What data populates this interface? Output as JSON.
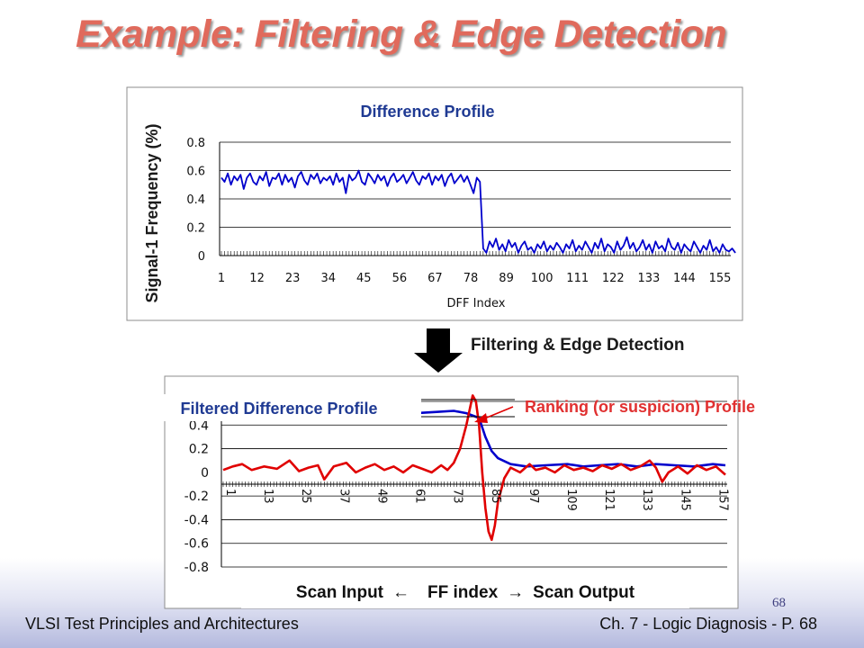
{
  "slide": {
    "title": "Example: Filtering & Edge Detection",
    "arrow_label": "Filtering & Edge Detection",
    "page_number": "68",
    "footer_left": "VLSI Test Principles and Architectures",
    "footer_right": "Ch. 7 - Logic Diagnosis  - P. 68",
    "bottom_caption": {
      "left": "Scan Input",
      "middle": "FF index",
      "right": "Scan Output"
    },
    "colors": {
      "title": "#e06a5c",
      "blue_series": "#0000cc",
      "red_series": "#e00000"
    }
  },
  "chart_data": [
    {
      "type": "line",
      "title": "Difference Profile",
      "xlabel": "DFF Index",
      "ylabel": "Signal-1 Frequency (%)",
      "ylim": [
        0,
        0.8
      ],
      "yticks": [
        0,
        0.2,
        0.4,
        0.6,
        0.8
      ],
      "xtick_labels": [
        "1",
        "12",
        "23",
        "34",
        "45",
        "56",
        "67",
        "78",
        "89",
        "100",
        "111",
        "122",
        "133",
        "144",
        "155"
      ],
      "x_count": 160,
      "grid": "horizontal",
      "series": [
        {
          "color": "#0000cc",
          "values": [
            0.55,
            0.52,
            0.58,
            0.5,
            0.56,
            0.53,
            0.57,
            0.47,
            0.55,
            0.58,
            0.52,
            0.5,
            0.56,
            0.53,
            0.59,
            0.49,
            0.55,
            0.54,
            0.58,
            0.5,
            0.57,
            0.52,
            0.55,
            0.48,
            0.56,
            0.59,
            0.53,
            0.5,
            0.57,
            0.54,
            0.58,
            0.51,
            0.55,
            0.53,
            0.56,
            0.5,
            0.58,
            0.52,
            0.55,
            0.44,
            0.57,
            0.53,
            0.55,
            0.6,
            0.52,
            0.5,
            0.58,
            0.55,
            0.51,
            0.57,
            0.53,
            0.56,
            0.49,
            0.55,
            0.58,
            0.52,
            0.54,
            0.57,
            0.51,
            0.55,
            0.59,
            0.53,
            0.5,
            0.56,
            0.54,
            0.58,
            0.5,
            0.56,
            0.53,
            0.57,
            0.49,
            0.55,
            0.58,
            0.51,
            0.54,
            0.57,
            0.52,
            0.56,
            0.5,
            0.44,
            0.55,
            0.52,
            0.05,
            0.02,
            0.1,
            0.06,
            0.12,
            0.04,
            0.08,
            0.03,
            0.11,
            0.06,
            0.09,
            0.02,
            0.07,
            0.1,
            0.04,
            0.06,
            0.02,
            0.08,
            0.05,
            0.1,
            0.03,
            0.07,
            0.04,
            0.09,
            0.06,
            0.02,
            0.08,
            0.05,
            0.11,
            0.03,
            0.07,
            0.04,
            0.1,
            0.06,
            0.02,
            0.09,
            0.05,
            0.12,
            0.03,
            0.08,
            0.06,
            0.02,
            0.1,
            0.04,
            0.07,
            0.13,
            0.05,
            0.09,
            0.03,
            0.06,
            0.11,
            0.04,
            0.08,
            0.02,
            0.1,
            0.05,
            0.07,
            0.03,
            0.12,
            0.06,
            0.04,
            0.09,
            0.02,
            0.08,
            0.05,
            0.03,
            0.1,
            0.06,
            0.02,
            0.07,
            0.04,
            0.11,
            0.03,
            0.06,
            0.02,
            0.08,
            0.04,
            0.03,
            0.05,
            0.02
          ]
        }
      ]
    },
    {
      "type": "line",
      "title": "Filtered Difference Profile",
      "annotation": "Ranking (or suspicion) Profile",
      "ylim": [
        -0.8,
        0.6
      ],
      "yticks": [
        -0.8,
        -0.6,
        -0.4,
        -0.2,
        0,
        0.2,
        0.4,
        0.6
      ],
      "xtick_labels": [
        "1",
        "13",
        "25",
        "37",
        "49",
        "61",
        "73",
        "85",
        "97",
        "109",
        "121",
        "133",
        "145",
        "157"
      ],
      "xtick_labels_note": "the 0.6 tick and the 49, 85, 145 and 157 labels are hard to read in the screenshot",
      "x_count": 160,
      "grid": "horizontal",
      "series": [
        {
          "color": "#0000cc",
          "points": [
            [
              1,
              0.55
            ],
            [
              5,
              0.53
            ],
            [
              12,
              0.52
            ],
            [
              20,
              0.52
            ],
            [
              26,
              0.5
            ],
            [
              30,
              0.48
            ],
            [
              36,
              0.51
            ],
            [
              42,
              0.5
            ],
            [
              50,
              0.5
            ],
            [
              56,
              0.52
            ],
            [
              62,
              0.5
            ],
            [
              68,
              0.51
            ],
            [
              74,
              0.52
            ],
            [
              78,
              0.5
            ],
            [
              82,
              0.46
            ],
            [
              84,
              0.3
            ],
            [
              86,
              0.18
            ],
            [
              88,
              0.12
            ],
            [
              92,
              0.07
            ],
            [
              97,
              0.05
            ],
            [
              103,
              0.06
            ],
            [
              110,
              0.07
            ],
            [
              115,
              0.05
            ],
            [
              120,
              0.06
            ],
            [
              126,
              0.07
            ],
            [
              132,
              0.05
            ],
            [
              138,
              0.07
            ],
            [
              144,
              0.06
            ],
            [
              150,
              0.05
            ],
            [
              156,
              0.07
            ],
            [
              160,
              0.06
            ]
          ]
        },
        {
          "color": "#e00000",
          "points": [
            [
              1,
              0.02
            ],
            [
              4,
              0.05
            ],
            [
              7,
              0.07
            ],
            [
              10,
              0.02
            ],
            [
              14,
              0.05
            ],
            [
              18,
              0.03
            ],
            [
              22,
              0.1
            ],
            [
              25,
              0.01
            ],
            [
              28,
              0.04
            ],
            [
              31,
              0.06
            ],
            [
              33,
              -0.06
            ],
            [
              36,
              0.05
            ],
            [
              40,
              0.08
            ],
            [
              43,
              0.0
            ],
            [
              46,
              0.04
            ],
            [
              49,
              0.07
            ],
            [
              52,
              0.02
            ],
            [
              55,
              0.05
            ],
            [
              58,
              0.0
            ],
            [
              61,
              0.06
            ],
            [
              64,
              0.03
            ],
            [
              67,
              0.0
            ],
            [
              70,
              0.06
            ],
            [
              72,
              0.02
            ],
            [
              74,
              0.08
            ],
            [
              76,
              0.2
            ],
            [
              78,
              0.4
            ],
            [
              80,
              0.65
            ],
            [
              81,
              0.6
            ],
            [
              82,
              0.4
            ],
            [
              83,
              0.0
            ],
            [
              84,
              -0.3
            ],
            [
              85,
              -0.5
            ],
            [
              86,
              -0.57
            ],
            [
              87,
              -0.45
            ],
            [
              88,
              -0.25
            ],
            [
              90,
              -0.05
            ],
            [
              92,
              0.04
            ],
            [
              95,
              0.0
            ],
            [
              98,
              0.07
            ],
            [
              100,
              0.02
            ],
            [
              103,
              0.04
            ],
            [
              106,
              0.0
            ],
            [
              109,
              0.06
            ],
            [
              112,
              0.02
            ],
            [
              115,
              0.04
            ],
            [
              118,
              0.01
            ],
            [
              121,
              0.06
            ],
            [
              124,
              0.03
            ],
            [
              127,
              0.07
            ],
            [
              130,
              0.02
            ],
            [
              133,
              0.05
            ],
            [
              136,
              0.1
            ],
            [
              138,
              0.04
            ],
            [
              140,
              -0.08
            ],
            [
              142,
              0.0
            ],
            [
              145,
              0.05
            ],
            [
              148,
              -0.01
            ],
            [
              151,
              0.06
            ],
            [
              154,
              0.02
            ],
            [
              157,
              0.05
            ],
            [
              160,
              -0.02
            ]
          ]
        }
      ]
    }
  ]
}
